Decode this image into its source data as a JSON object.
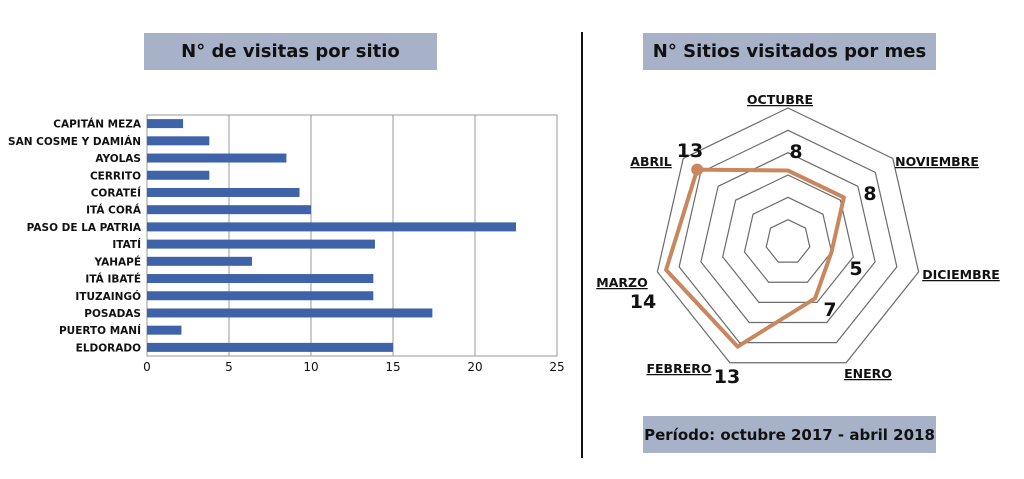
{
  "bar_title": "N° de visitas por sitio",
  "radar_title": "N° Sitios visitados por mes",
  "period": "Período: octubre 2017 - abril 2018",
  "chart_data": [
    {
      "type": "bar",
      "orientation": "horizontal",
      "title": "N° de visitas por sitio",
      "categories": [
        "CAPITÁN MEZA",
        "SAN COSME Y DAMIÁN",
        "AYOLAS",
        "CERRITO",
        "CORATEÍ",
        "ITÁ CORÁ",
        "PASO DE LA PATRIA",
        "ITATÍ",
        "YAHAPÉ",
        "ITÁ IBATÉ",
        "ITUZAINGÓ",
        "POSADAS",
        "PUERTO MANÍ",
        "ELDORADO"
      ],
      "values": [
        2.2,
        3.8,
        8.5,
        3.8,
        9.3,
        10,
        22.5,
        13.9,
        6.4,
        13.8,
        13.8,
        17.4,
        2.1,
        15
      ],
      "xlim": [
        0,
        25
      ],
      "xticks": [
        0,
        5,
        10,
        15,
        20,
        25
      ],
      "grid": true,
      "color": "#3f63a8"
    },
    {
      "type": "radar",
      "title": "N° Sitios visitados por mes",
      "categories": [
        "OCTUBRE",
        "NOVIEMBRE",
        "DICIEMBRE",
        "ENERO",
        "FEBRERO",
        "MARZO",
        "ABRIL"
      ],
      "values": [
        8,
        8,
        5,
        7,
        13,
        14,
        13
      ],
      "max": 15,
      "rings": 6,
      "color": "#c8875e"
    }
  ]
}
